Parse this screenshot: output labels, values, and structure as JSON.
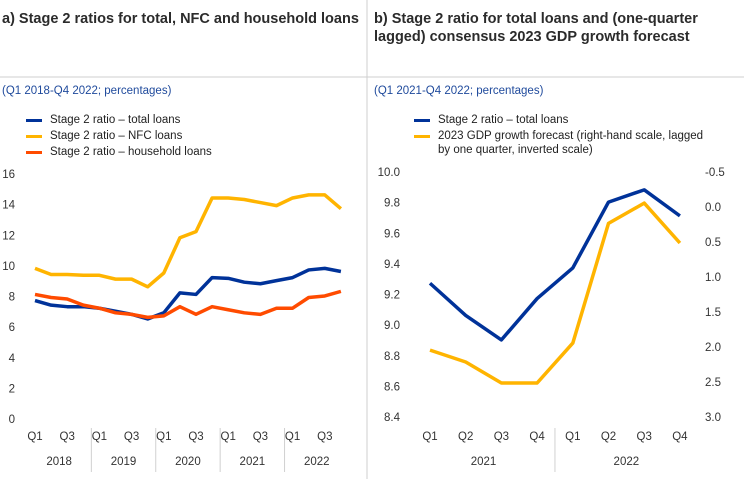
{
  "chart_data": [
    {
      "type": "line",
      "title": "a) Stage 2 ratios for total, NFC and household loans",
      "subtitle": "(Q1 2018-Q4 2022; percentages)",
      "categories": [
        "Q1",
        null,
        "Q3",
        null,
        "Q1",
        null,
        "Q3",
        null,
        "Q1",
        null,
        "Q3",
        null,
        "Q1",
        null,
        "Q3",
        null,
        "Q1",
        null,
        "Q3",
        null
      ],
      "years": [
        "2018",
        "2019",
        "2020",
        "2021",
        "2022"
      ],
      "ylim": [
        0,
        16
      ],
      "yticks": [
        0,
        2,
        4,
        6,
        8,
        10,
        12,
        14,
        16
      ],
      "grid": false,
      "series": [
        {
          "name": "Stage 2 ratio – total loans",
          "color": "#003299",
          "values": [
            7.8,
            7.5,
            7.4,
            7.4,
            7.3,
            7.1,
            6.9,
            6.6,
            7.0,
            8.3,
            8.2,
            9.3,
            9.25,
            9.0,
            8.9,
            9.1,
            9.3,
            9.8,
            9.9,
            9.7
          ]
        },
        {
          "name": "Stage 2 ratio – NFC loans",
          "color": "#ffb400",
          "values": [
            9.9,
            9.5,
            9.5,
            9.45,
            9.45,
            9.2,
            9.2,
            8.7,
            9.6,
            11.9,
            12.3,
            14.5,
            14.5,
            14.4,
            14.2,
            14.0,
            14.5,
            14.7,
            14.7,
            13.8
          ]
        },
        {
          "name": "Stage 2 ratio – household loans",
          "color": "#ff4b00",
          "values": [
            8.2,
            8.0,
            7.9,
            7.5,
            7.3,
            7.0,
            6.9,
            6.7,
            6.8,
            7.4,
            6.9,
            7.4,
            7.2,
            7.0,
            6.9,
            7.3,
            7.3,
            8.0,
            8.1,
            8.4
          ]
        }
      ]
    },
    {
      "type": "line",
      "title": "b) Stage 2 ratio for total loans and (one-quarter lagged) consensus 2023 GDP growth forecast",
      "subtitle": "(Q1 2021-Q4 2022; percentages)",
      "categories": [
        "Q1",
        "Q2",
        "Q3",
        "Q4",
        "Q1",
        "Q2",
        "Q3",
        "Q4"
      ],
      "years": [
        "2021",
        "2022"
      ],
      "ylim": [
        8.4,
        10.0
      ],
      "yticks": [
        8.4,
        8.6,
        8.8,
        {
          "value": 9.0,
          "label": "9.0"
        },
        9.2,
        9.4,
        9.6,
        9.8,
        {
          "value": 10.0,
          "label": "10.0"
        }
      ],
      "y2lim": [
        -0.5,
        3.0
      ],
      "y2_inverted": true,
      "y2ticks": [
        -0.5,
        {
          "value": 0,
          "label": "0.0"
        },
        0.5,
        {
          "value": 1,
          "label": "1.0"
        },
        1.5,
        {
          "value": 2,
          "label": "2.0"
        },
        2.5,
        {
          "value": 3,
          "label": "3.0"
        }
      ],
      "grid": false,
      "series": [
        {
          "name": "Stage 2 ratio – total loans",
          "color": "#003299",
          "values": [
            9.28,
            9.07,
            8.91,
            9.18,
            9.38,
            9.81,
            9.89,
            9.72
          ]
        },
        {
          "name": "2023 GDP growth forecast (right-hand scale, lagged by one quarter, inverted scale)",
          "color": "#ffb400",
          "axis": "y2",
          "values": [
            2.03,
            2.2,
            2.5,
            2.5,
            1.93,
            0.22,
            -0.07,
            0.5
          ]
        }
      ]
    }
  ]
}
